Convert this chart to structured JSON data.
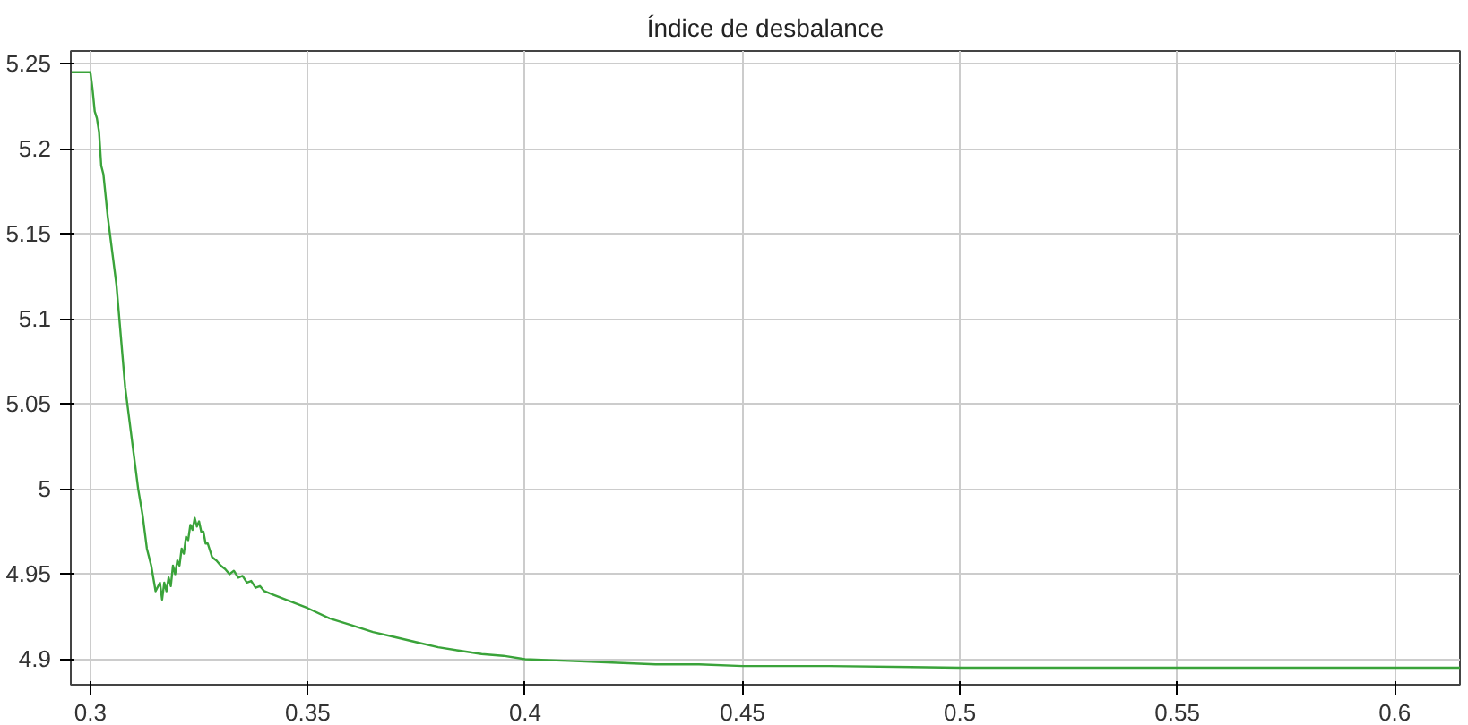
{
  "chart_data": {
    "type": "line",
    "title": "Índice de desbalance",
    "x": [
      0.2955,
      0.3,
      0.3005,
      0.301,
      0.3015,
      0.302,
      0.3025,
      0.303,
      0.304,
      0.305,
      0.306,
      0.307,
      0.308,
      0.309,
      0.31,
      0.311,
      0.312,
      0.313,
      0.314,
      0.315,
      0.316,
      0.3165,
      0.317,
      0.3175,
      0.318,
      0.3185,
      0.319,
      0.3195,
      0.32,
      0.3205,
      0.321,
      0.3215,
      0.322,
      0.3225,
      0.323,
      0.3235,
      0.324,
      0.3245,
      0.325,
      0.3255,
      0.326,
      0.3265,
      0.327,
      0.328,
      0.329,
      0.33,
      0.331,
      0.332,
      0.333,
      0.334,
      0.335,
      0.336,
      0.337,
      0.338,
      0.339,
      0.34,
      0.342,
      0.344,
      0.346,
      0.348,
      0.35,
      0.355,
      0.36,
      0.365,
      0.37,
      0.375,
      0.38,
      0.385,
      0.39,
      0.395,
      0.4,
      0.41,
      0.42,
      0.43,
      0.44,
      0.45,
      0.47,
      0.5,
      0.55,
      0.6,
      0.615
    ],
    "series": [
      {
        "color": "#3aa33a",
        "values": [
          5.245,
          5.245,
          5.235,
          5.222,
          5.218,
          5.21,
          5.19,
          5.185,
          5.16,
          5.14,
          5.12,
          5.09,
          5.06,
          5.04,
          5.02,
          5.0,
          4.985,
          4.965,
          4.955,
          4.94,
          4.945,
          4.935,
          4.945,
          4.94,
          4.948,
          4.943,
          4.955,
          4.95,
          4.958,
          4.955,
          4.965,
          4.962,
          4.972,
          4.97,
          4.979,
          4.976,
          4.983,
          4.978,
          4.981,
          4.975,
          4.975,
          4.968,
          4.968,
          4.96,
          4.958,
          4.955,
          4.953,
          4.95,
          4.952,
          4.948,
          4.949,
          4.945,
          4.946,
          4.942,
          4.943,
          4.94,
          4.938,
          4.936,
          4.934,
          4.932,
          4.93,
          4.924,
          4.92,
          4.916,
          4.913,
          4.91,
          4.907,
          4.905,
          4.903,
          4.902,
          4.9,
          4.899,
          4.898,
          4.897,
          4.897,
          4.896,
          4.896,
          4.895,
          4.895,
          4.895,
          4.895
        ]
      }
    ],
    "xlim": [
      0.2955,
      0.615
    ],
    "ylim": [
      4.885,
      5.2575
    ],
    "xticks": [
      0.3,
      0.35,
      0.4,
      0.45,
      0.5,
      0.55,
      0.6
    ],
    "yticks": [
      4.9,
      4.95,
      5,
      5.05,
      5.1,
      5.15,
      5.2,
      5.25
    ],
    "grid": true
  }
}
